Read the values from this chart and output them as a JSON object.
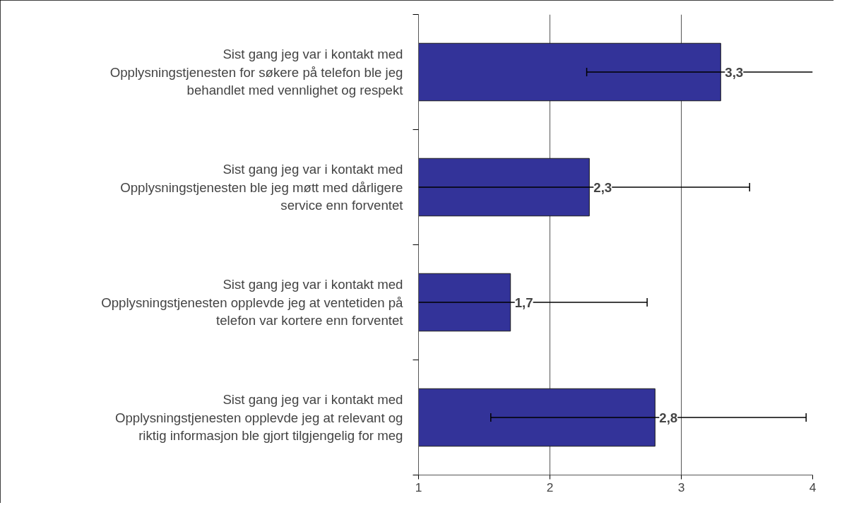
{
  "chart_data": {
    "type": "bar",
    "orientation": "horizontal",
    "categories": [
      "Sist gang jeg var i kontakt med\nOpplysningstjenesten for søkere på telefon ble jeg\nbehandlet med vennlighet og respekt",
      "Sist gang jeg var i kontakt med\nOpplysningstjenesten ble jeg møtt med dårligere\nservice enn forventet",
      "Sist gang jeg var i kontakt med\nOpplysningstjenesten opplevde jeg at ventetiden på\ntelefon var kortere enn forventet",
      "Sist gang jeg var i kontakt med\nOpplysningstjenesten opplevde jeg at relevant og\nriktig informasjon ble gjort tilgjengelig for meg"
    ],
    "values": [
      3.3,
      2.3,
      1.7,
      2.8
    ],
    "value_labels": [
      "3,3",
      "2,3",
      "1,7",
      "2,8"
    ],
    "errors": [
      [
        2.28,
        4
      ],
      [
        1,
        3.52
      ],
      [
        1,
        2.74
      ],
      [
        1.55,
        3.95
      ]
    ],
    "color": "#333399",
    "xlim": [
      1,
      4
    ],
    "xticks": [
      1,
      2,
      3,
      4
    ],
    "grid": "x"
  }
}
